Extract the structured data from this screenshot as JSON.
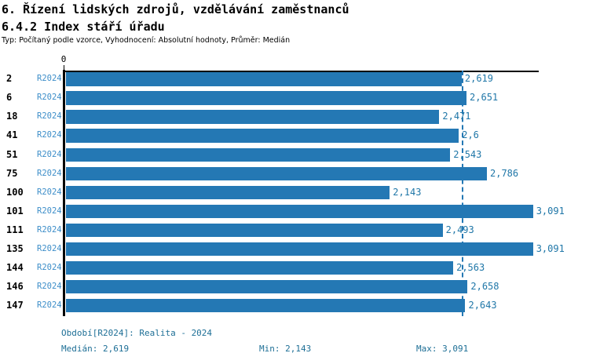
{
  "colors": {
    "bar": "#2478B4",
    "series_label": "#3D8EC9",
    "value_label": "#2077A8",
    "caption": "#1E6F96",
    "axis": "#000000"
  },
  "chart_data": {
    "type": "bar",
    "orientation": "horizontal",
    "title": "6. Řízení lidských zdrojů, vzdělávání zaměstnanců",
    "subtitle": "6.4.2 Index stáří úřadu",
    "meta": "Typ: Počítaný podle vzorce, Vyhodnocení: Absolutní hodnoty, Průměr: Medián",
    "axis_tick_label": "0",
    "xlim": [
      0,
      3.129
    ],
    "grid": false,
    "legend_position": "none",
    "categories": [
      "2",
      "6",
      "18",
      "41",
      "51",
      "75",
      "100",
      "101",
      "111",
      "135",
      "144",
      "146",
      "147"
    ],
    "series_label": "R2024",
    "values": [
      2.619,
      2.651,
      2.471,
      2.6,
      2.543,
      2.786,
      2.143,
      3.091,
      2.493,
      3.091,
      2.563,
      2.658,
      2.643
    ],
    "value_labels": [
      "2,619",
      "2,651",
      "2,471",
      "2,6",
      "2,543",
      "2,786",
      "2,143",
      "3,091",
      "2,493",
      "3,091",
      "2,563",
      "2,658",
      "2,643"
    ],
    "median_line": 2.619,
    "footer": {
      "period": "Období[R2024]: Realita - 2024",
      "median": "Medián: 2,619",
      "min": "Min: 2,143",
      "max": "Max: 3,091"
    }
  }
}
